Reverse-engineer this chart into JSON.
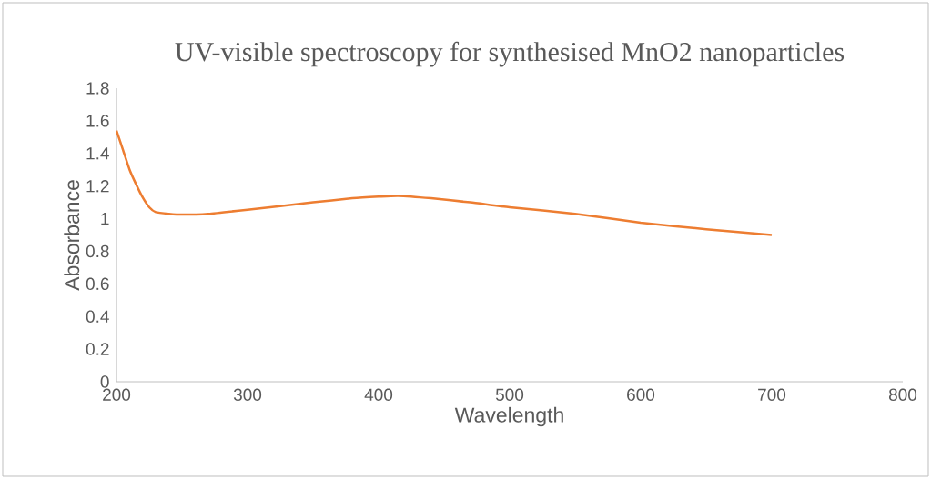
{
  "chart_data": {
    "type": "line",
    "title": "UV-visible spectroscopy for synthesised MnO2 nanoparticles",
    "xlabel": "Wavelength",
    "ylabel": "Absorbance",
    "x": [
      200,
      205,
      210,
      215,
      220,
      225,
      230,
      240,
      250,
      270,
      300,
      350,
      380,
      400,
      415,
      440,
      470,
      500,
      550,
      600,
      650,
      700
    ],
    "series": [
      {
        "color": "#ed7d31",
        "values": [
          1.54,
          1.42,
          1.3,
          1.21,
          1.13,
          1.07,
          1.04,
          1.03,
          1.025,
          1.03,
          1.055,
          1.1,
          1.125,
          1.135,
          1.14,
          1.125,
          1.1,
          1.07,
          1.03,
          0.975,
          0.935,
          0.9
        ]
      }
    ],
    "xlim": [
      200,
      800
    ],
    "xticks": [
      200,
      300,
      400,
      500,
      600,
      700,
      800
    ],
    "ylim": [
      0,
      1.8
    ],
    "yticks": [
      0,
      0.2,
      0.4,
      0.6,
      0.8,
      1,
      1.2,
      1.4,
      1.6,
      1.8
    ],
    "grid": false,
    "marker": "none",
    "line_style": "solid"
  }
}
